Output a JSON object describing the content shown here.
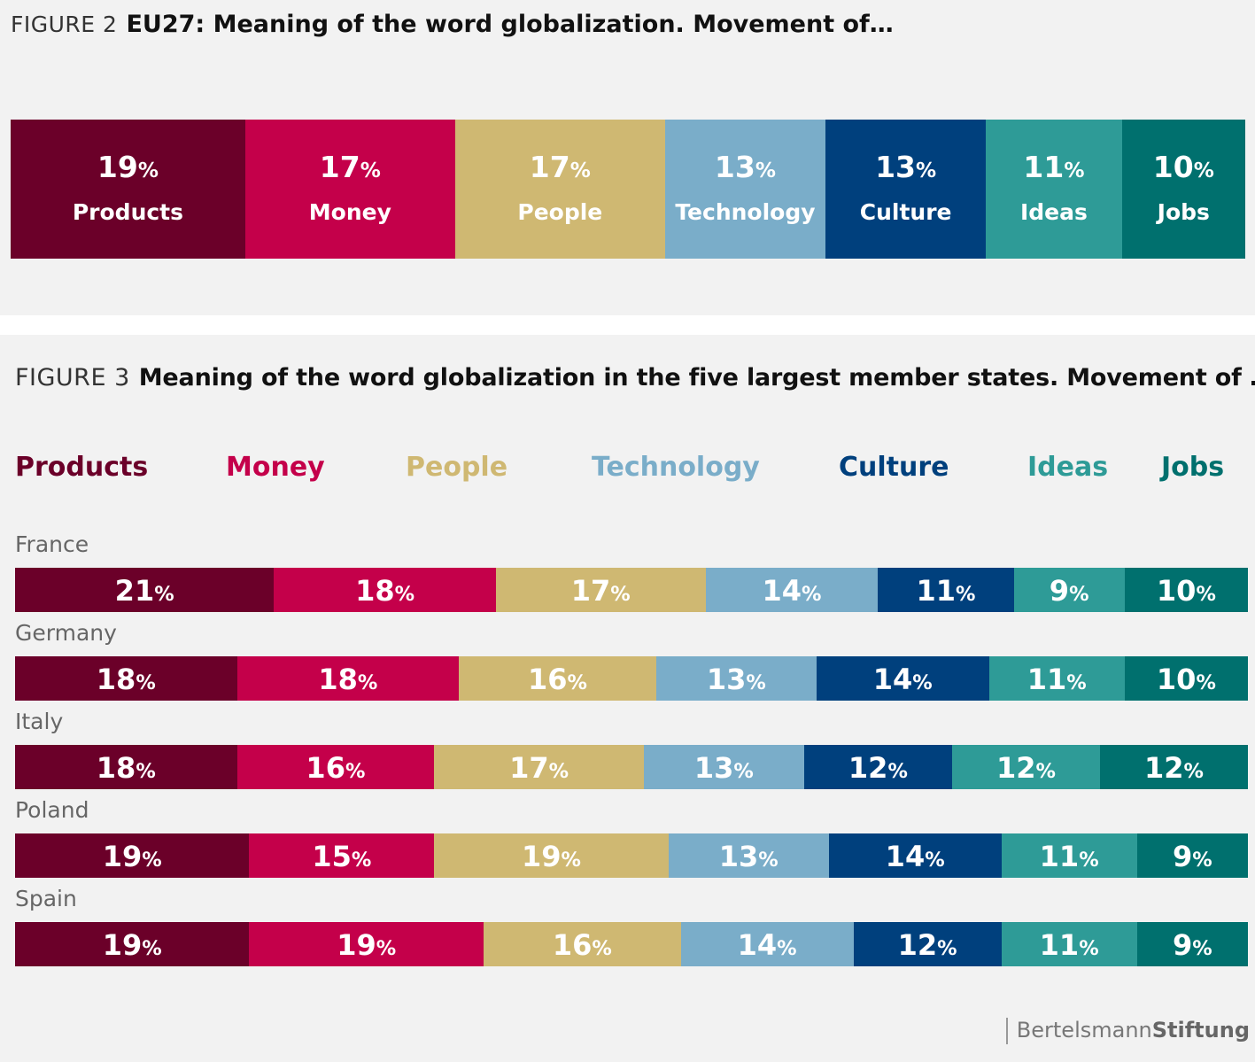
{
  "figure2": {
    "label": "FIGURE 2",
    "title": "EU27: Meaning of the word globalization. Movement of…"
  },
  "figure3": {
    "label": "FIGURE 3",
    "title": "Meaning of the word globalization in the five largest member states. Movement of …"
  },
  "colors": {
    "Products": "#6b0029",
    "Money": "#c4004a",
    "People": "#cfb872",
    "Technology": "#7aadc9",
    "Culture": "#00407d",
    "Ideas": "#2e9b97",
    "Jobs": "#00706e"
  },
  "percent_sign": "%",
  "source_logo": {
    "part1": "Bertelsmann",
    "part2": "Stiftung"
  },
  "chart_data": [
    {
      "type": "bar",
      "stacked": true,
      "orientation": "horizontal",
      "title": "EU27: Meaning of the word globalization. Movement of…",
      "categories": [
        "EU27"
      ],
      "series": [
        {
          "name": "Products",
          "values": [
            19
          ]
        },
        {
          "name": "Money",
          "values": [
            17
          ]
        },
        {
          "name": "People",
          "values": [
            17
          ]
        },
        {
          "name": "Technology",
          "values": [
            13
          ]
        },
        {
          "name": "Culture",
          "values": [
            13
          ]
        },
        {
          "name": "Ideas",
          "values": [
            11
          ]
        },
        {
          "name": "Jobs",
          "values": [
            10
          ]
        }
      ],
      "unit": "%",
      "legend": "inside bars"
    },
    {
      "type": "bar",
      "stacked": true,
      "orientation": "horizontal",
      "title": "Meaning of the word globalization in the five largest member states. Movement of …",
      "categories": [
        "France",
        "Germany",
        "Italy",
        "Poland",
        "Spain"
      ],
      "series": [
        {
          "name": "Products",
          "values": [
            21,
            18,
            18,
            19,
            19
          ]
        },
        {
          "name": "Money",
          "values": [
            18,
            18,
            16,
            15,
            19
          ]
        },
        {
          "name": "People",
          "values": [
            17,
            16,
            17,
            19,
            16
          ]
        },
        {
          "name": "Technology",
          "values": [
            14,
            13,
            13,
            13,
            14
          ]
        },
        {
          "name": "Culture",
          "values": [
            11,
            14,
            12,
            14,
            12
          ]
        },
        {
          "name": "Ideas",
          "values": [
            9,
            11,
            12,
            11,
            11
          ]
        },
        {
          "name": "Jobs",
          "values": [
            10,
            10,
            12,
            9,
            9
          ]
        }
      ],
      "unit": "%",
      "legend": "top"
    }
  ]
}
